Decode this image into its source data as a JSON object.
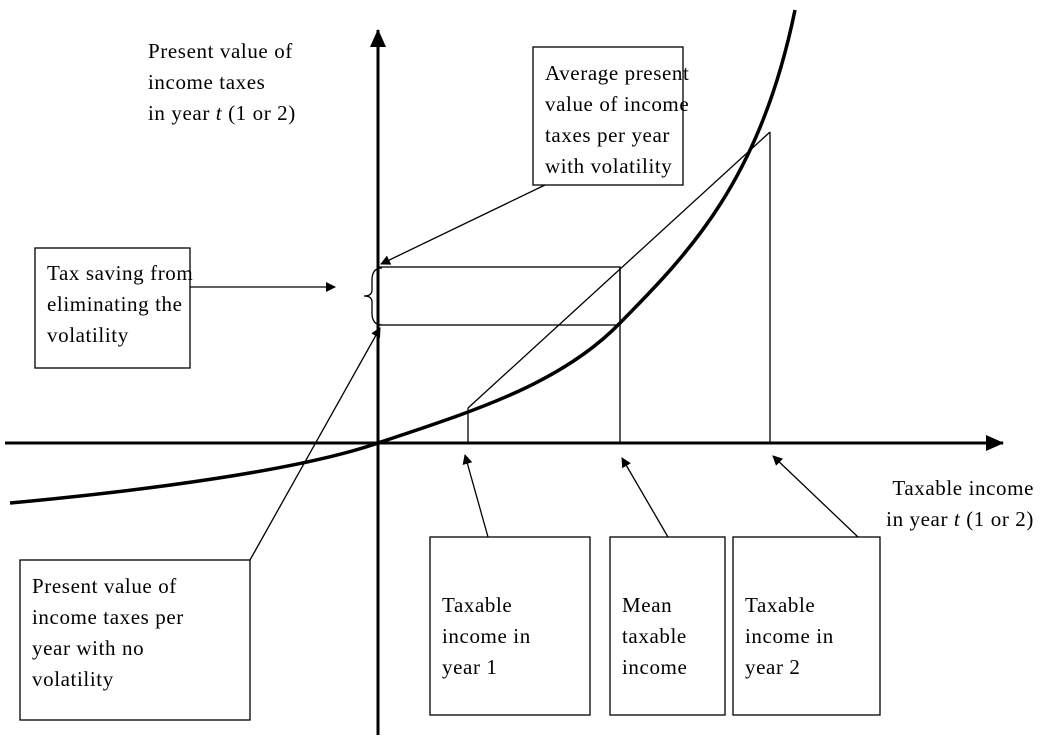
{
  "y_axis_label": [
    "Present value of",
    "income taxes",
    [
      "in year ",
      "t",
      " (1 or 2)"
    ]
  ],
  "x_axis_label": [
    "Taxable income",
    [
      "in year ",
      "t",
      " (1 or 2)"
    ]
  ],
  "average_box": [
    "Average present",
    "value of income",
    "taxes per year",
    "with volatility"
  ],
  "saving_box": [
    "Tax saving from",
    "eliminating the",
    "volatility"
  ],
  "no_volatility_box": [
    "Present value of",
    "income taxes per",
    "year with no",
    "volatility"
  ],
  "year1_box": [
    "Taxable",
    "income in",
    "year 1"
  ],
  "mean_box": [
    "Mean",
    "taxable",
    "income"
  ],
  "year2_box": [
    "Taxable",
    "income in",
    "year 2"
  ]
}
